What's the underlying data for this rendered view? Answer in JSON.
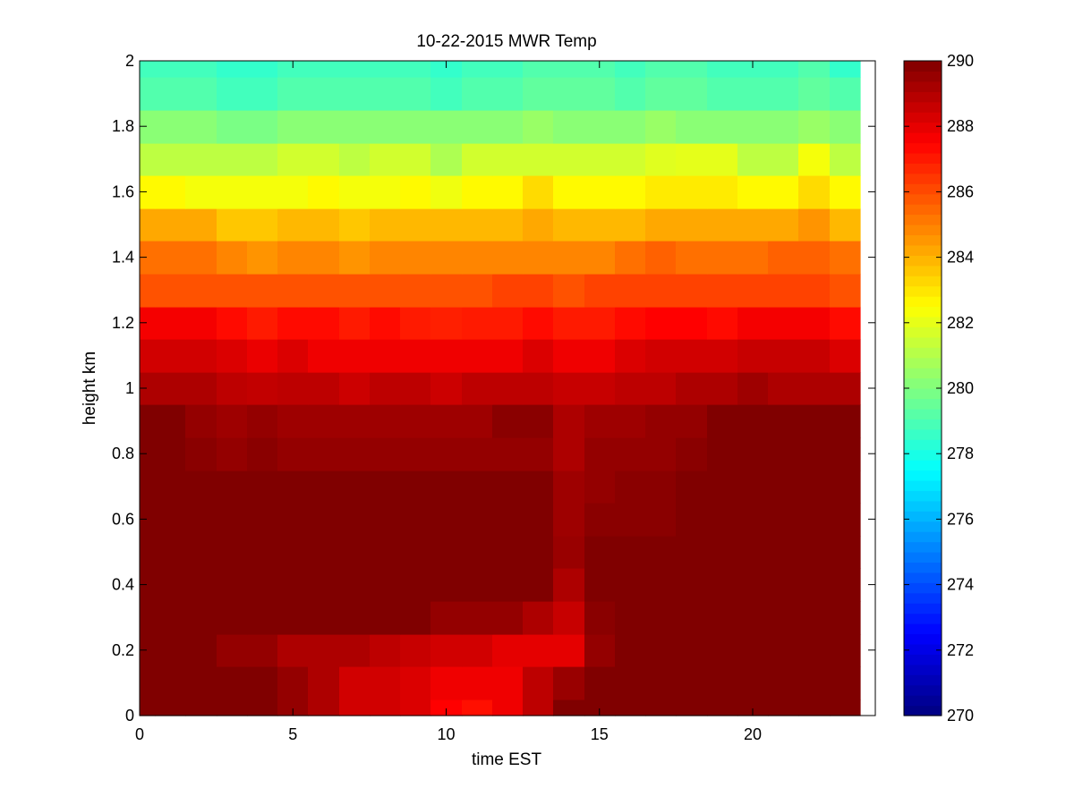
{
  "chart_data": {
    "type": "heatmap",
    "title": "10-22-2015 MWR Temp",
    "xlabel": "time EST",
    "ylabel": "height km",
    "xlim": [
      0,
      24
    ],
    "ylim": [
      0,
      2
    ],
    "xticks": [
      "0",
      "5",
      "10",
      "15",
      "20"
    ],
    "xtick_values": [
      0,
      5,
      10,
      15,
      20
    ],
    "yticks": [
      "0",
      "0.2",
      "0.4",
      "0.6",
      "0.8",
      "1",
      "1.2",
      "1.4",
      "1.6",
      "1.8",
      "2"
    ],
    "ytick_values": [
      0,
      0.2,
      0.4,
      0.6,
      0.8,
      1.0,
      1.2,
      1.4,
      1.6,
      1.8,
      2.0
    ],
    "colormap": "jet",
    "clim": [
      270,
      290
    ],
    "colorbar_ticks": [
      "270",
      "272",
      "274",
      "276",
      "278",
      "280",
      "282",
      "284",
      "286",
      "288",
      "290"
    ],
    "colorbar_tick_values": [
      270,
      272,
      274,
      276,
      278,
      280,
      282,
      284,
      286,
      288,
      290
    ],
    "x_centers": [
      0,
      1,
      2,
      3,
      4,
      5,
      6,
      7,
      8,
      9,
      10,
      11,
      12,
      13,
      14,
      15,
      16,
      17,
      18,
      19,
      20,
      21,
      22,
      23
    ],
    "y_edges": [
      0,
      0.05,
      0.15,
      0.25,
      0.35,
      0.45,
      0.55,
      0.65,
      0.75,
      0.85,
      0.95,
      1.05,
      1.15,
      1.25,
      1.35,
      1.45,
      1.55,
      1.65,
      1.75,
      1.85,
      1.95,
      2.0
    ],
    "grid": false,
    "values": [
      [
        290,
        290,
        290,
        290,
        290,
        289.6,
        289.1,
        288.4,
        288.4,
        288.2,
        287.5,
        287.2,
        287.8,
        288.8,
        290,
        290,
        290,
        290,
        290,
        290,
        290,
        290,
        290,
        290
      ],
      [
        290,
        290,
        290,
        290,
        290,
        289.6,
        289.1,
        288.4,
        288.4,
        288.2,
        287.8,
        287.8,
        287.8,
        288.8,
        289.5,
        290,
        290,
        290,
        290,
        290,
        290,
        290,
        290,
        290
      ],
      [
        290,
        290,
        290,
        289.6,
        289.6,
        289.1,
        289.1,
        289.1,
        288.8,
        288.6,
        288.4,
        288.4,
        288.0,
        288.0,
        288.0,
        289.6,
        290,
        290,
        290,
        290,
        290,
        290,
        290,
        290
      ],
      [
        290,
        290,
        290,
        290,
        290,
        290,
        290,
        290,
        290,
        290,
        289.6,
        289.6,
        289.6,
        289.1,
        288.6,
        289.8,
        290,
        290,
        290,
        290,
        290,
        290,
        290,
        290
      ],
      [
        290,
        290,
        290,
        290,
        290,
        290,
        290,
        290,
        290,
        290,
        290,
        290,
        290,
        290,
        289.1,
        290,
        290,
        290,
        290,
        290,
        290,
        290,
        290,
        290
      ],
      [
        290,
        290,
        290,
        290,
        290,
        290,
        290,
        290,
        290,
        290,
        290,
        290,
        290,
        290,
        289.5,
        290,
        290,
        290,
        290,
        290,
        290,
        290,
        290,
        290
      ],
      [
        290,
        290,
        290,
        290,
        290,
        290,
        290,
        290,
        290,
        290,
        290,
        290,
        290,
        290,
        289.4,
        289.8,
        289.8,
        289.8,
        290,
        290,
        290,
        290,
        290,
        290
      ],
      [
        290,
        290,
        290,
        290,
        290,
        290,
        290,
        290,
        290,
        290,
        290,
        290,
        290,
        290,
        289.4,
        289.6,
        289.8,
        289.8,
        290,
        290,
        290,
        290,
        290,
        290
      ],
      [
        290,
        290,
        289.8,
        289.6,
        289.8,
        289.6,
        289.6,
        289.6,
        289.6,
        289.6,
        289.6,
        289.6,
        289.6,
        289.6,
        289.1,
        289.6,
        289.6,
        289.6,
        289.8,
        290,
        290,
        290,
        290,
        290
      ],
      [
        290,
        290,
        289.6,
        289.4,
        289.6,
        289.4,
        289.4,
        289.4,
        289.4,
        289.4,
        289.4,
        289.4,
        289.8,
        289.8,
        289.1,
        289.4,
        289.4,
        289.6,
        289.6,
        290,
        290,
        290,
        290,
        290
      ],
      [
        289.1,
        289.1,
        289.1,
        288.8,
        288.7,
        288.8,
        288.8,
        288.5,
        288.8,
        288.8,
        288.5,
        288.8,
        288.8,
        288.8,
        288.6,
        288.6,
        288.8,
        288.8,
        289.1,
        289.1,
        289.4,
        289.1,
        289.1,
        289.1
      ],
      [
        288.4,
        288.4,
        288.4,
        288.2,
        287.9,
        288.2,
        287.8,
        287.8,
        287.8,
        287.8,
        287.8,
        287.8,
        287.8,
        288.2,
        287.8,
        287.8,
        288.2,
        288.4,
        288.4,
        288.4,
        288.6,
        288.6,
        288.6,
        288.2
      ],
      [
        287.7,
        287.7,
        287.7,
        287.3,
        287.0,
        287.3,
        287.3,
        287.0,
        287.3,
        287.0,
        286.9,
        287.0,
        287.0,
        287.3,
        287.0,
        287.0,
        287.3,
        287.5,
        287.5,
        287.3,
        287.7,
        287.7,
        287.7,
        287.3
      ],
      [
        285.9,
        285.9,
        285.9,
        285.9,
        285.9,
        285.9,
        285.9,
        285.9,
        285.9,
        285.9,
        285.9,
        285.9,
        286.2,
        286.2,
        285.9,
        286.2,
        286.2,
        286.2,
        286.2,
        286.2,
        286.2,
        286.2,
        286.2,
        285.9
      ],
      [
        285.3,
        285.3,
        285.3,
        284.9,
        284.6,
        284.9,
        284.9,
        284.6,
        284.9,
        284.9,
        284.9,
        284.9,
        284.9,
        284.9,
        284.9,
        284.9,
        285.3,
        285.6,
        285.3,
        285.3,
        285.3,
        285.6,
        285.6,
        285.3
      ],
      [
        284.2,
        284.2,
        284.2,
        283.6,
        283.6,
        283.9,
        283.9,
        283.6,
        283.9,
        283.9,
        283.9,
        283.9,
        283.9,
        284.2,
        283.9,
        283.9,
        283.9,
        284.2,
        284.2,
        284.2,
        284.2,
        284.2,
        284.6,
        283.9
      ],
      [
        282.6,
        282.6,
        282.3,
        282.3,
        282.3,
        282.3,
        282.6,
        282.3,
        282.3,
        282.6,
        282.2,
        282.6,
        282.6,
        283.2,
        282.6,
        282.6,
        282.6,
        282.9,
        282.9,
        282.9,
        282.6,
        282.6,
        283.2,
        282.6
      ],
      [
        281.2,
        281.2,
        281.2,
        281.2,
        281.2,
        281.6,
        281.6,
        281.2,
        281.6,
        281.6,
        280.9,
        281.6,
        281.6,
        281.6,
        281.6,
        281.6,
        281.6,
        281.9,
        282.0,
        282.0,
        281.2,
        281.2,
        282.3,
        281.2
      ],
      [
        280.2,
        280.2,
        280.2,
        279.9,
        279.9,
        280.2,
        280.2,
        280.2,
        280.2,
        280.2,
        280.2,
        280.2,
        280.2,
        280.5,
        280.2,
        280.2,
        280.2,
        280.5,
        280.2,
        280.2,
        280.2,
        280.2,
        280.5,
        280.2
      ],
      [
        279.1,
        279.1,
        279.1,
        278.8,
        278.8,
        279.1,
        279.1,
        279.1,
        279.1,
        279.1,
        278.8,
        279.1,
        279.1,
        279.4,
        279.4,
        279.4,
        279.1,
        279.4,
        279.4,
        279.1,
        279.1,
        279.1,
        279.4,
        279.1
      ],
      [
        278.8,
        278.8,
        278.8,
        278.5,
        278.5,
        278.8,
        278.8,
        278.8,
        278.8,
        278.8,
        278.5,
        278.8,
        278.8,
        279.1,
        279.1,
        279.1,
        278.8,
        279.1,
        279.1,
        278.8,
        278.8,
        278.8,
        279.1,
        278.5
      ]
    ]
  }
}
